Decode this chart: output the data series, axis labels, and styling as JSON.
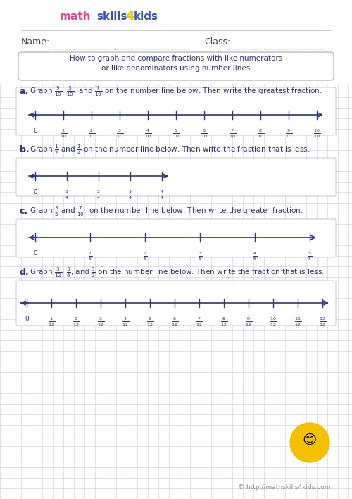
{
  "bg_color": "#ffffff",
  "grid_color": "#c8c8e8",
  "line_color": "#2d3580",
  "text_color": "#2d3580",
  "title_text": "How to graph and compare fractions with like numerators\nor like denominators using number lines",
  "name_label": "Name:",
  "class_label": "Class:",
  "logo_colors": {
    "math": "#e84393",
    "skills": "#3355bb",
    "4": "#f5c000",
    "kids": "#3355bb"
  },
  "sections": [
    {
      "letter": "a.",
      "instruction": "Graph $\\frac{9}{10}$, $\\frac{3}{10}$, and $\\frac{7}{10}$ on the number line below. Then write the greatest fraction.",
      "num_ticks": 11,
      "tick_labels": [
        "0",
        "$\\frac{1}{10}$",
        "$\\frac{2}{10}$",
        "$\\frac{3}{10}$",
        "$\\frac{4}{10}$",
        "$\\frac{5}{10}$",
        "$\\frac{6}{10}$",
        "$\\frac{7}{10}$",
        "$\\frac{8}{10}$",
        "$\\frac{9}{10}$",
        "$\\frac{10}{10}$"
      ]
    },
    {
      "letter": "b.",
      "instruction": "Graph $\\frac{1}{2}$ and $\\frac{1}{4}$ on the number line below. Then write the fraction that is less.",
      "num_ticks": 5,
      "tick_labels": [
        "0",
        "$\\frac{1}{4}$",
        "$\\frac{2}{4}$",
        "$\\frac{3}{4}$",
        "$\\frac{4}{4}$"
      ]
    },
    {
      "letter": "c.",
      "instruction": "Graph $\\frac{3}{5}$ and $\\frac{7}{10}$  on the number line below. Then write the greater fraction.",
      "num_ticks": 6,
      "tick_labels": [
        "0",
        "$\\frac{1}{5}$",
        "$\\frac{2}{5}$",
        "$\\frac{3}{5}$",
        "$\\frac{4}{5}$",
        "$\\frac{5}{5}$"
      ]
    },
    {
      "letter": "d.",
      "instruction": "Graph $\\frac{3}{12}$, $\\frac{3}{6}$, and $\\frac{3}{2}$ on the number line below. Then write the fraction that is less.",
      "num_ticks": 13,
      "tick_labels": [
        "0",
        "$\\frac{1}{12}$",
        "$\\frac{2}{12}$",
        "$\\frac{3}{12}$",
        "$\\frac{4}{12}$",
        "$\\frac{5}{12}$",
        "$\\frac{6}{12}$",
        "$\\frac{7}{12}$",
        "$\\frac{8}{12}$",
        "$\\frac{9}{12}$",
        "$\\frac{10}{12}$",
        "$\\frac{11}{12}$",
        "$\\frac{12}{12}$"
      ]
    }
  ],
  "footer": "© http://mathskills4kids.com"
}
